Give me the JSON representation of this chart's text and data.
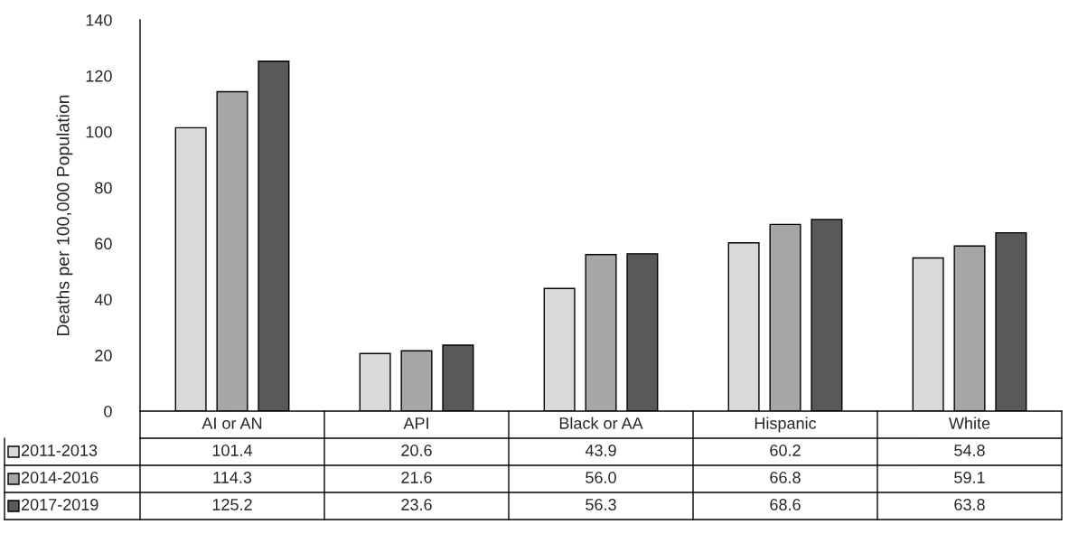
{
  "chart_data": {
    "type": "bar",
    "ylabel": "Deaths per 100,000 Population",
    "categories": [
      "AI or AN",
      "API",
      "Black or AA",
      "Hispanic",
      "White"
    ],
    "series": [
      {
        "name": "2011-2013",
        "color": "#d9d9d9",
        "values": [
          101.4,
          20.6,
          43.9,
          60.2,
          54.8
        ],
        "value_labels": [
          "101.4",
          "20.6",
          "43.9",
          "60.2",
          "54.8"
        ]
      },
      {
        "name": "2014-2016",
        "color": "#a6a6a6",
        "values": [
          114.3,
          21.6,
          56.0,
          66.8,
          59.1
        ],
        "value_labels": [
          "114.3",
          "21.6",
          "56.0",
          "66.8",
          "59.1"
        ]
      },
      {
        "name": "2017-2019",
        "color": "#595959",
        "values": [
          125.2,
          23.6,
          56.3,
          68.6,
          63.8
        ],
        "value_labels": [
          "125.2",
          "23.6",
          "56.3",
          "68.6",
          "63.8"
        ]
      }
    ],
    "ylim": [
      0,
      140
    ],
    "yticks": [
      0,
      20,
      40,
      60,
      80,
      100,
      120,
      140
    ],
    "legend": "bottom left",
    "grid": false
  }
}
